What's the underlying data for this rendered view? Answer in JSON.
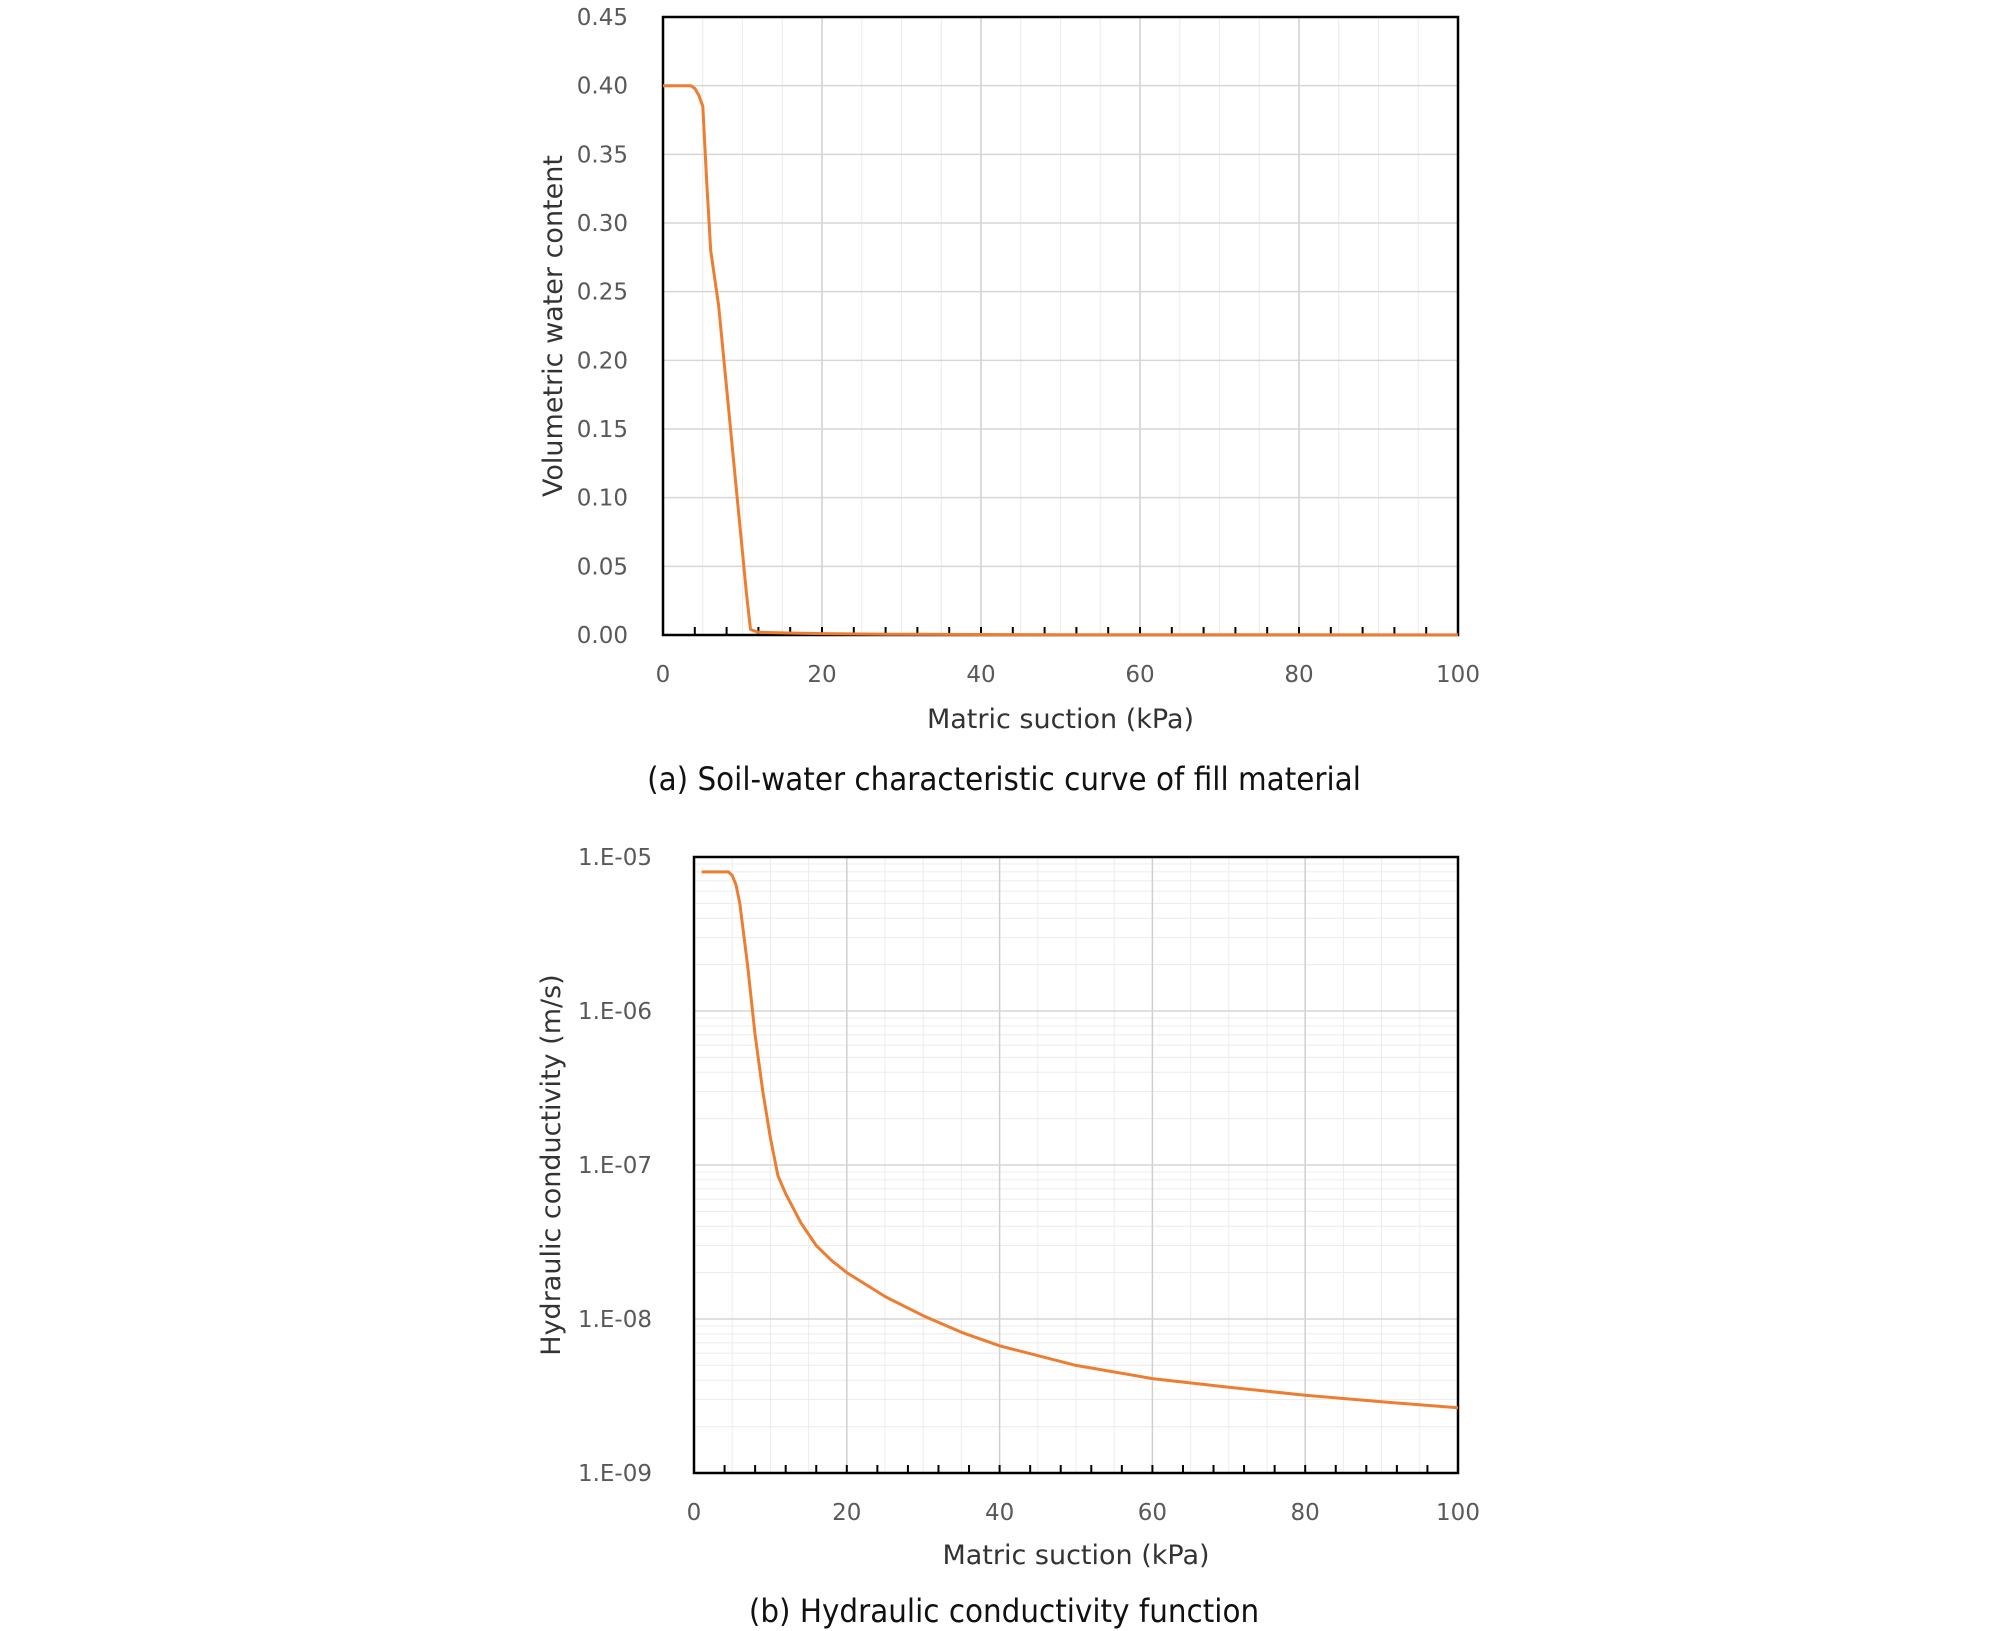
{
  "chart_data": [
    {
      "type": "line",
      "caption": "(a) Soil-water characteristic curve of fill material",
      "xlabel": "Matric suction (kPa)",
      "ylabel": "Volumetric water content",
      "xlim": [
        0,
        100
      ],
      "ylim": [
        0,
        0.45
      ],
      "x_ticks": [
        "0",
        "20",
        "40",
        "60",
        "80",
        "100"
      ],
      "y_ticks": [
        "0.00",
        "0.05",
        "0.10",
        "0.15",
        "0.20",
        "0.25",
        "0.30",
        "0.35",
        "0.40",
        "0.45"
      ],
      "grid": true,
      "line_color": "#ED7D31",
      "series": [
        {
          "x": [
            0,
            3.5,
            4,
            4.5,
            5,
            5.5,
            6,
            7,
            8,
            9,
            10,
            10.5,
            11,
            12,
            15,
            20,
            30,
            50,
            100
          ],
          "y": [
            0.4,
            0.4,
            0.398,
            0.393,
            0.385,
            0.33,
            0.28,
            0.24,
            0.18,
            0.12,
            0.06,
            0.03,
            0.004,
            0.002,
            0.0015,
            0.001,
            0.0005,
            0.0002,
            0.0001
          ]
        }
      ]
    },
    {
      "type": "line",
      "caption": "(b) Hydraulic conductivity function",
      "xlabel": "Matric suction (kPa)",
      "ylabel": "Hydraulic conductivity (m/s)",
      "xlim": [
        0,
        100
      ],
      "ylim": [
        1e-09,
        1e-05
      ],
      "yscale": "log",
      "x_ticks": [
        "0",
        "20",
        "40",
        "60",
        "80",
        "100"
      ],
      "y_ticks": [
        "1.E-05",
        "1.E-06",
        "1.E-07",
        "1.E-08",
        "1.E-09"
      ],
      "grid": true,
      "line_color": "#ED7D31",
      "series": [
        {
          "x": [
            1,
            4.5,
            5,
            5.5,
            6,
            7,
            8,
            9,
            10,
            11,
            12,
            14,
            16,
            18,
            20,
            25,
            30,
            35,
            40,
            50,
            60,
            70,
            80,
            90,
            100
          ],
          "y": [
            8e-06,
            8e-06,
            7.6e-06,
            6.6e-06,
            5e-06,
            2e-06,
            7e-07,
            3e-07,
            1.5e-07,
            8.5e-08,
            6.5e-08,
            4.2e-08,
            3e-08,
            2.4e-08,
            2e-08,
            1.4e-08,
            1.05e-08,
            8.2e-09,
            6.7e-09,
            5e-09,
            4.1e-09,
            3.6e-09,
            3.2e-09,
            2.9e-09,
            2.65e-09
          ]
        }
      ]
    }
  ]
}
